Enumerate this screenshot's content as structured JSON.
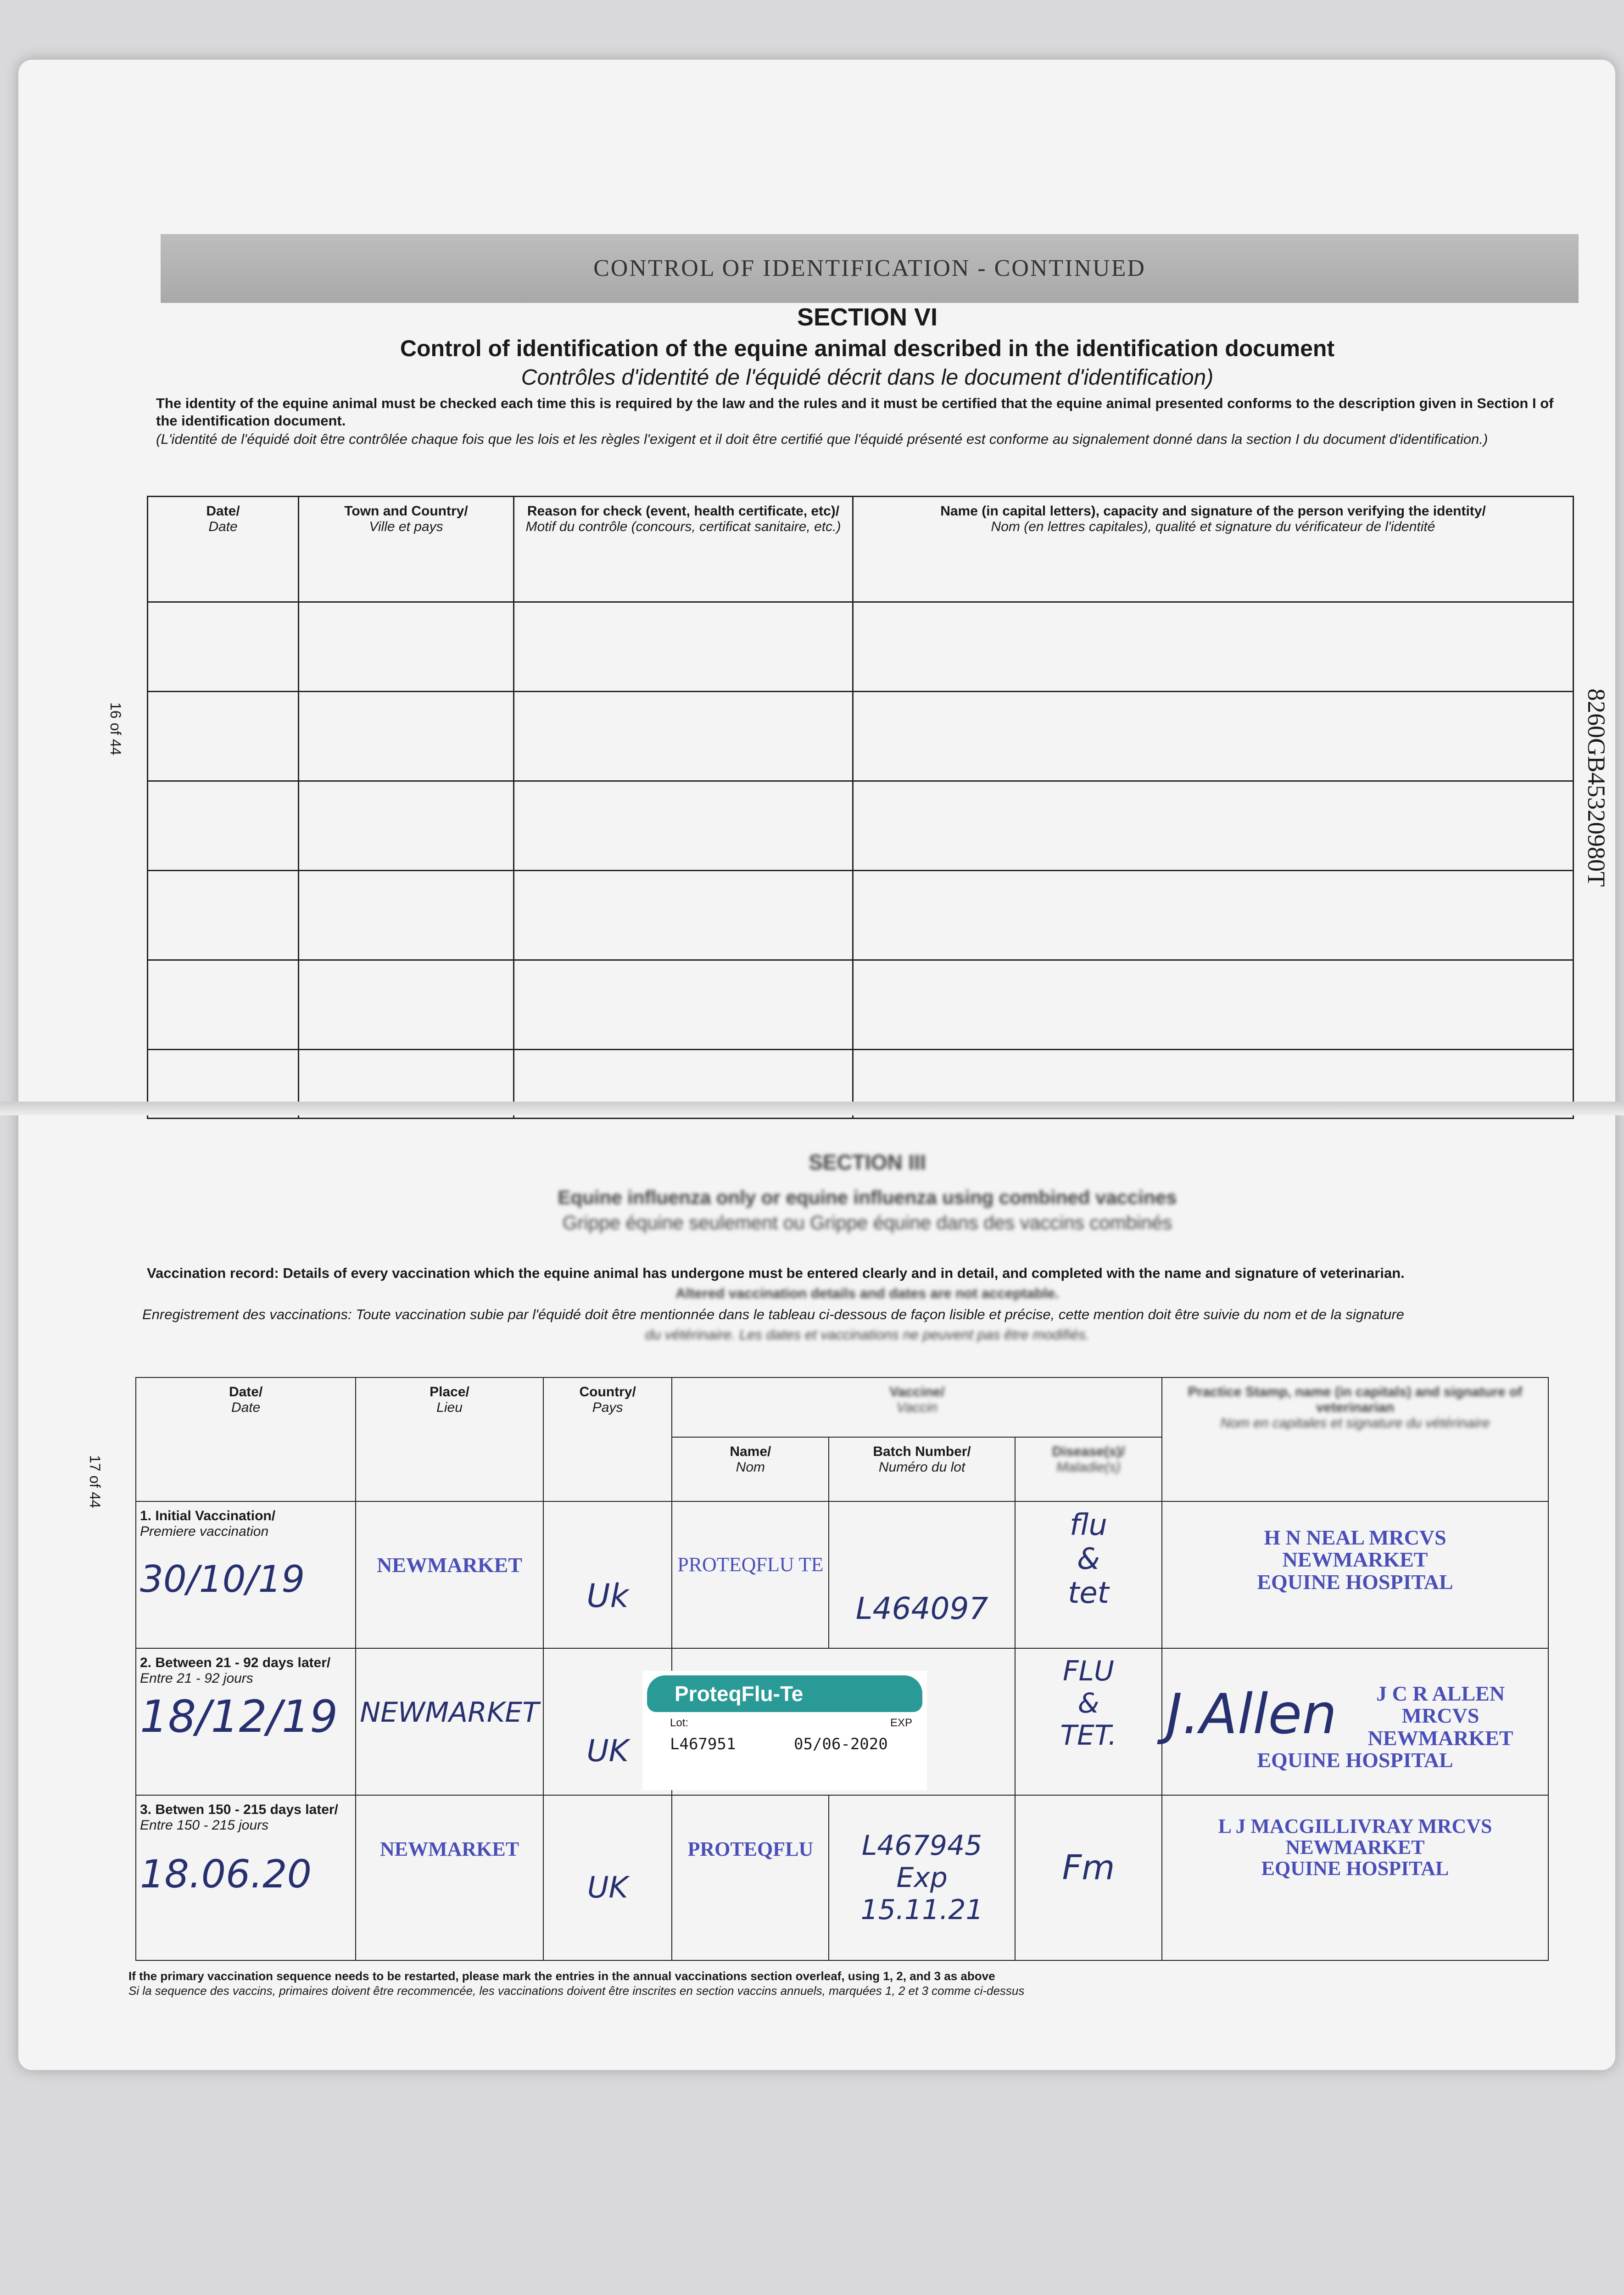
{
  "header": {
    "banner": "CONTROL OF IDENTIFICATION - CONTINUED",
    "section": "SECTION VI",
    "title": "Control of identification of the equine animal described in the identification document",
    "title_fr": "Contrôles d'identité de l'équidé décrit dans le document d'identification)",
    "intro": "The identity of the equine animal must be checked each time this is required by the law and the rules and it must be certified that the equine animal presented conforms to the description given in Section I of the identification document.",
    "intro_fr": "(L'identité de l'équidé doit être contrôlée chaque fois que les lois et les règles l'exigent et il doit être certifié que l'équidé présenté est conforme au signalement donné dans la section I du document d'identification.)"
  },
  "page_numbers": {
    "top": "16 of 44",
    "bottom": "17 of 44",
    "passport_id": "8260GB45320980T"
  },
  "id_table": {
    "headers": [
      {
        "en": "Date/",
        "fr": "Date"
      },
      {
        "en": "Town and Country/",
        "fr": "Ville et pays"
      },
      {
        "en": "Reason for check (event, health certificate, etc)/",
        "fr": "Motif du contrôle (concours, certificat sanitaire, etc.)"
      },
      {
        "en": "Name (in capital letters), capacity and signature of the person verifying the identity/",
        "fr": "Nom (en lettres capitales), qualité et signature du vérificateur de l'identité"
      }
    ],
    "empty_rows": 6
  },
  "vaccination": {
    "section": "SECTION III",
    "title": "Equine influenza only or equine influenza using combined vaccines",
    "title_fr": "Grippe équine seulement ou Grippe équine dans des vaccins combinés",
    "record": "Vaccination record: Details of every vaccination which the equine animal has undergone must be entered clearly and in detail, and completed with the name and signature of veterinarian.",
    "record2": "Altered vaccination details and dates are not acceptable.",
    "record_fr": "Enregistrement des vaccinations: Toute vaccination subie par l'équidé doit être mentionnée dans le tableau ci-dessous de façon lisible et précise, cette mention doit être suivie du nom et de la signature",
    "record_fr2": "du vétérinaire. Les dates et vaccinations ne peuvent pas être modifiés.",
    "headers": {
      "date": "Date/",
      "date_fr": "Date",
      "place": "Place/",
      "place_fr": "Lieu",
      "country": "Country/",
      "country_fr": "Pays",
      "vaccine": "Vaccine/",
      "vaccine_fr": "Vaccin",
      "name": "Name/",
      "name_fr": "Nom",
      "batch": "Batch Number/",
      "batch_fr": "Numéro du lot",
      "disease": "Disease(s)/",
      "disease_fr": "Maladie(s)",
      "stamp": "Practice Stamp, name (in capitals) and signature of veterinarian",
      "stamp_fr": "Nom en capitales et signature du vétérinaire"
    },
    "rows": [
      {
        "label": "1. Initial Vaccination/",
        "label_fr": "Premiere vaccination",
        "date": "30/10/19",
        "place": "NEWMARKET",
        "country": "Uk",
        "name": "PROTEQFLU TE",
        "batch": "L464097",
        "disease": "flu & tet",
        "stamp": [
          "H N NEAL MRCVS",
          "NEWMARKET",
          "EQUINE HOSPITAL"
        ]
      },
      {
        "label": "2. Between 21 - 92 days later/",
        "label_fr": "Entre 21 - 92 jours",
        "date": "18/12/19",
        "place": "NEWMARKET",
        "country": "UK",
        "name": "ProteqFlu-Te",
        "lot_label": "Lot:",
        "exp_label": "EXP",
        "lot": "L467951",
        "exp": "05/06-2020",
        "disease": "FLU & TET.",
        "signature": "J.Allen",
        "stamp": [
          "J C R ALLEN MRCVS",
          "NEWMARKET",
          "EQUINE HOSPITAL"
        ]
      },
      {
        "label": "3. Betwen 150 - 215 days later/",
        "label_fr": "Entre 150 - 215 jours",
        "date": "18.06.20",
        "place": "NEWMARKET",
        "country": "UK",
        "name": "PROTEQFLU",
        "batch": "L467945",
        "batch_exp": "Exp 15.11.21",
        "disease": "Fm",
        "stamp": [
          "L J MACGILLIVRAY MRCVS",
          "NEWMARKET",
          "EQUINE HOSPITAL"
        ]
      }
    ],
    "footnote": "If the primary vaccination sequence needs to be restarted, please mark the entries in the annual vaccinations section overleaf, using 1, 2, and 3 as above",
    "footnote_fr": "Si la sequence des vaccins, primaires doivent être recommencée, les vaccinations doivent être inscrites en section vaccins annuels, marquées 1, 2 et 3 comme ci-dessus"
  },
  "colors": {
    "ink": "#27306f",
    "stamp": "#4a4fb8",
    "label": "#2a9a97"
  }
}
